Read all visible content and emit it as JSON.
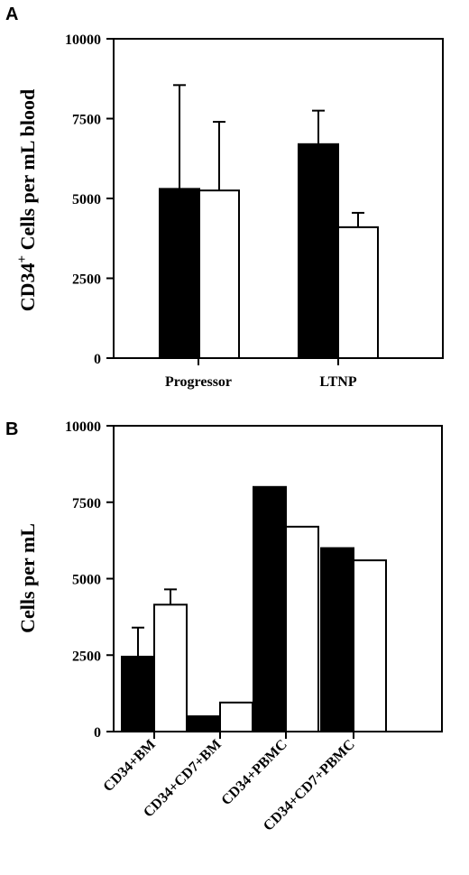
{
  "chart_data": [
    {
      "panel": "A",
      "type": "bar",
      "ylabel": "CD34",
      "ylabel_sup": "+",
      "ylabel_rest": " Cells per mL blood",
      "categories": [
        "Progressor",
        "LTNP"
      ],
      "series": [
        {
          "color": "#000000",
          "values": [
            5300,
            6700
          ],
          "errors": [
            3250,
            1050
          ]
        },
        {
          "color": "#ffffff",
          "values": [
            5250,
            4100
          ],
          "errors": [
            2150,
            450
          ]
        }
      ],
      "ylim": [
        0,
        10000
      ],
      "yticks": [
        "0",
        "2500",
        "5000",
        "7500",
        "10000"
      ]
    },
    {
      "panel": "B",
      "type": "bar",
      "ylabel": "Cells per mL",
      "categories": [
        "CD34+BM",
        "CD34+CD7+BM",
        "CD34+PBMC",
        "CD34+CD7+PBMC"
      ],
      "series": [
        {
          "color": "#000000",
          "values": [
            2450,
            500,
            8000,
            6000
          ],
          "errors": [
            950,
            0,
            0,
            0
          ]
        },
        {
          "color": "#ffffff",
          "values": [
            4150,
            950,
            6700,
            5600
          ],
          "errors": [
            500,
            0,
            0,
            0
          ]
        }
      ],
      "ylim": [
        0,
        10000
      ],
      "yticks": [
        "0",
        "2500",
        "5000",
        "7500",
        "10000"
      ]
    }
  ]
}
